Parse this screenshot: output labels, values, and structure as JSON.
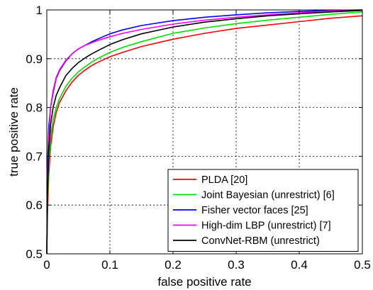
{
  "chart_data": {
    "type": "line",
    "title": "",
    "xlabel": "false positive rate",
    "ylabel": "true positive rate",
    "xlim": [
      0,
      0.5
    ],
    "ylim": [
      0.5,
      1
    ],
    "grid": true,
    "legend_position": "bottom-right",
    "x_ticks": [
      0,
      0.1,
      0.2,
      0.3,
      0.4,
      0.5
    ],
    "x_tick_labels": [
      "0",
      "0.1",
      "0.2",
      "0.3",
      "0.4",
      "0.5"
    ],
    "y_ticks": [
      0.5,
      0.6,
      0.7,
      0.8,
      0.9,
      1
    ],
    "y_tick_labels": [
      "0.5",
      "0.6",
      "0.7",
      "0.8",
      "0.9",
      "1"
    ],
    "series": [
      {
        "name": "PLDA [20]",
        "color": "#ff0000",
        "x": [
          0,
          0.001,
          0.003,
          0.006,
          0.01,
          0.015,
          0.02,
          0.03,
          0.04,
          0.05,
          0.06,
          0.07,
          0.08,
          0.1,
          0.12,
          0.15,
          0.2,
          0.25,
          0.3,
          0.35,
          0.4,
          0.45,
          0.5
        ],
        "y": [
          0.5,
          0.58,
          0.66,
          0.72,
          0.76,
          0.79,
          0.81,
          0.834,
          0.852,
          0.866,
          0.876,
          0.885,
          0.892,
          0.904,
          0.913,
          0.925,
          0.94,
          0.952,
          0.962,
          0.969,
          0.976,
          0.983,
          0.988
        ]
      },
      {
        "name": "Joint Bayesian (unrestrict) [6]",
        "color": "#00e000",
        "x": [
          0,
          0.001,
          0.003,
          0.006,
          0.01,
          0.015,
          0.02,
          0.03,
          0.04,
          0.05,
          0.06,
          0.07,
          0.08,
          0.1,
          0.12,
          0.15,
          0.2,
          0.25,
          0.3,
          0.35,
          0.4,
          0.45,
          0.5
        ],
        "y": [
          0.5,
          0.6,
          0.68,
          0.74,
          0.775,
          0.8,
          0.818,
          0.843,
          0.86,
          0.873,
          0.883,
          0.892,
          0.9,
          0.913,
          0.923,
          0.935,
          0.952,
          0.963,
          0.972,
          0.979,
          0.985,
          0.991,
          0.996
        ]
      },
      {
        "name": "Fisher vector faces [25]",
        "color": "#0000ff",
        "x": [
          0,
          0.001,
          0.003,
          0.006,
          0.01,
          0.015,
          0.02,
          0.03,
          0.04,
          0.05,
          0.06,
          0.07,
          0.08,
          0.1,
          0.12,
          0.15,
          0.2,
          0.25,
          0.3,
          0.35,
          0.4,
          0.45,
          0.5
        ],
        "y": [
          0.5,
          0.68,
          0.76,
          0.8,
          0.83,
          0.86,
          0.875,
          0.895,
          0.91,
          0.92,
          0.927,
          0.934,
          0.94,
          0.951,
          0.959,
          0.968,
          0.978,
          0.985,
          0.99,
          0.994,
          0.997,
          0.999,
          1.0
        ]
      },
      {
        "name": "High-dim LBP (unrestrict) [7]",
        "color": "#ff00ff",
        "x": [
          0,
          0.001,
          0.003,
          0.006,
          0.01,
          0.015,
          0.02,
          0.03,
          0.04,
          0.05,
          0.06,
          0.07,
          0.08,
          0.1,
          0.12,
          0.15,
          0.2,
          0.25,
          0.3,
          0.35,
          0.4,
          0.45,
          0.5
        ],
        "y": [
          0.5,
          0.64,
          0.74,
          0.8,
          0.835,
          0.862,
          0.877,
          0.897,
          0.91,
          0.92,
          0.927,
          0.932,
          0.937,
          0.945,
          0.952,
          0.96,
          0.971,
          0.979,
          0.985,
          0.99,
          0.994,
          0.998,
          1.0
        ]
      },
      {
        "name": "ConvNet-RBM (unrestrict)",
        "color": "#000000",
        "x": [
          0,
          0.001,
          0.003,
          0.006,
          0.01,
          0.015,
          0.02,
          0.03,
          0.04,
          0.05,
          0.06,
          0.07,
          0.08,
          0.1,
          0.12,
          0.15,
          0.2,
          0.25,
          0.3,
          0.35,
          0.4,
          0.45,
          0.5
        ],
        "y": [
          0.5,
          0.62,
          0.71,
          0.765,
          0.8,
          0.825,
          0.84,
          0.865,
          0.88,
          0.892,
          0.901,
          0.909,
          0.916,
          0.929,
          0.939,
          0.951,
          0.965,
          0.975,
          0.982,
          0.988,
          0.992,
          0.996,
          0.999
        ]
      }
    ]
  }
}
